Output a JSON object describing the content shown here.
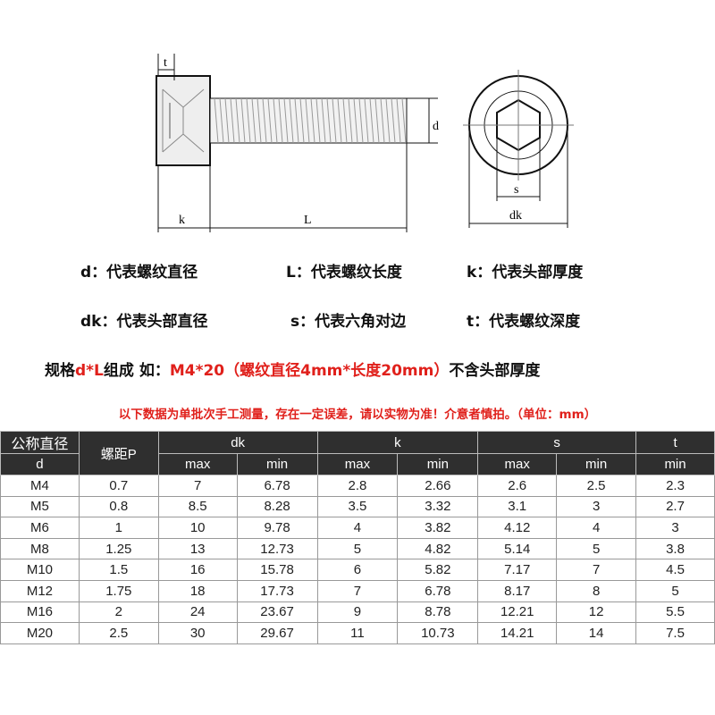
{
  "drawing": {
    "t": "t",
    "d": "d",
    "k": "k",
    "L": "L",
    "s": "s",
    "dk": "dk"
  },
  "legend": [
    {
      "key": "d：",
      "text": "代表螺纹直径"
    },
    {
      "key": "L：",
      "text": "代表螺纹长度"
    },
    {
      "key": "k：",
      "text": "代表头部厚度"
    },
    {
      "key": "dk：",
      "text": "代表头部直径"
    },
    {
      "key": "s：",
      "text": "代表六角对边"
    },
    {
      "key": "t：",
      "text": "代表螺纹深度"
    }
  ],
  "spec": {
    "prefix": "规格",
    "formula": "d*L",
    "mid": "组成  如：",
    "example": "M4*20（螺纹直径4mm*长度20mm）",
    "suffix": "不含头部厚度"
  },
  "note": "以下数据为单批次手工测量，存在一定误差，请以实物为准！介意者慎拍。（单位：mm）",
  "table": {
    "headers": {
      "nominal": "公称直径",
      "nominal_d": "d",
      "pitch": "螺距P",
      "dk": "dk",
      "k": "k",
      "s": "s",
      "t": "t",
      "max": "max",
      "min": "min"
    },
    "rows": [
      [
        "M4",
        "0.7",
        "7",
        "6.78",
        "2.8",
        "2.66",
        "2.6",
        "2.5",
        "2.3"
      ],
      [
        "M5",
        "0.8",
        "8.5",
        "8.28",
        "3.5",
        "3.32",
        "3.1",
        "3",
        "2.7"
      ],
      [
        "M6",
        "1",
        "10",
        "9.78",
        "4",
        "3.82",
        "4.12",
        "4",
        "3"
      ],
      [
        "M8",
        "1.25",
        "13",
        "12.73",
        "5",
        "4.82",
        "5.14",
        "5",
        "3.8"
      ],
      [
        "M10",
        "1.5",
        "16",
        "15.78",
        "6",
        "5.82",
        "7.17",
        "7",
        "4.5"
      ],
      [
        "M12",
        "1.75",
        "18",
        "17.73",
        "7",
        "6.78",
        "8.17",
        "8",
        "5"
      ],
      [
        "M16",
        "2",
        "24",
        "23.67",
        "9",
        "8.78",
        "12.21",
        "12",
        "5.5"
      ],
      [
        "M20",
        "2.5",
        "30",
        "29.67",
        "11",
        "10.73",
        "14.21",
        "14",
        "7.5"
      ]
    ]
  }
}
